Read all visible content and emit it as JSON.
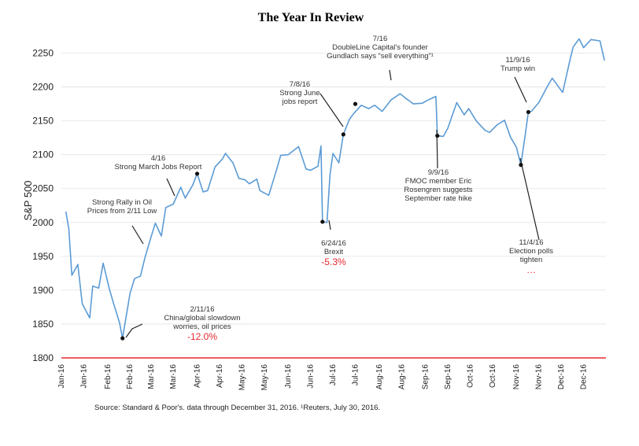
{
  "chart_data": {
    "type": "line",
    "title": "The Year In Review",
    "ylabel": "S&P 500",
    "xlabel": "",
    "ylim": [
      1800,
      2275
    ],
    "yticks": [
      1800,
      1850,
      1900,
      1950,
      2000,
      2050,
      2100,
      2150,
      2200,
      2250
    ],
    "xlim": [
      "2016-01-01",
      "2016-12-31"
    ],
    "grid": "horizontal",
    "x_tick_labels": [
      "Jan-16",
      "Jan-16",
      "Feb-16",
      "Feb-16",
      "Mar-16",
      "Mar-16",
      "Apr-16",
      "Apr-16",
      "May-16",
      "May-16",
      "Jun-16",
      "Jun-16",
      "Jul-16",
      "Jul-16",
      "Aug-16",
      "Aug-16",
      "Sep-16",
      "Sep-16",
      "Oct-16",
      "Oct-16",
      "Nov-16",
      "Nov-16",
      "Dec-16",
      "Dec-16"
    ],
    "x_tick_dates": [
      "2016-01-01",
      "2016-01-16",
      "2016-02-01",
      "2016-02-16",
      "2016-03-01",
      "2016-03-16",
      "2016-04-01",
      "2016-04-16",
      "2016-05-01",
      "2016-05-16",
      "2016-06-01",
      "2016-06-16",
      "2016-07-01",
      "2016-07-16",
      "2016-08-01",
      "2016-08-16",
      "2016-09-01",
      "2016-09-16",
      "2016-10-01",
      "2016-10-16",
      "2016-11-01",
      "2016-11-16",
      "2016-12-01",
      "2016-12-16"
    ],
    "series": [
      {
        "color": "#5b9bd5",
        "x": [
          "2016-01-04",
          "2016-01-06",
          "2016-01-08",
          "2016-01-12",
          "2016-01-15",
          "2016-01-20",
          "2016-01-22",
          "2016-01-26",
          "2016-01-29",
          "2016-02-02",
          "2016-02-05",
          "2016-02-09",
          "2016-02-11",
          "2016-02-16",
          "2016-02-19",
          "2016-02-23",
          "2016-02-26",
          "2016-03-01",
          "2016-03-04",
          "2016-03-08",
          "2016-03-11",
          "2016-03-16",
          "2016-03-21",
          "2016-03-24",
          "2016-03-29",
          "2016-04-01",
          "2016-04-05",
          "2016-04-08",
          "2016-04-13",
          "2016-04-18",
          "2016-04-20",
          "2016-04-25",
          "2016-04-29",
          "2016-05-03",
          "2016-05-06",
          "2016-05-11",
          "2016-05-13",
          "2016-05-19",
          "2016-05-24",
          "2016-05-27",
          "2016-06-01",
          "2016-06-08",
          "2016-06-13",
          "2016-06-16",
          "2016-06-21",
          "2016-06-23",
          "2016-06-24",
          "2016-06-27",
          "2016-06-29",
          "2016-07-01",
          "2016-07-05",
          "2016-07-08",
          "2016-07-12",
          "2016-07-15",
          "2016-07-20",
          "2016-07-25",
          "2016-07-29",
          "2016-08-03",
          "2016-08-09",
          "2016-08-15",
          "2016-08-19",
          "2016-08-24",
          "2016-08-30",
          "2016-09-02",
          "2016-09-08",
          "2016-09-09",
          "2016-09-13",
          "2016-09-16",
          "2016-09-22",
          "2016-09-27",
          "2016-09-30",
          "2016-10-05",
          "2016-10-11",
          "2016-10-14",
          "2016-10-19",
          "2016-10-24",
          "2016-10-28",
          "2016-11-01",
          "2016-11-04",
          "2016-11-07",
          "2016-11-09",
          "2016-11-11",
          "2016-11-16",
          "2016-11-22",
          "2016-11-25",
          "2016-11-30",
          "2016-12-02",
          "2016-12-07",
          "2016-12-09",
          "2016-12-13",
          "2016-12-16",
          "2016-12-21",
          "2016-12-27",
          "2016-12-29",
          "2016-12-30"
        ],
        "y": [
          2016,
          1990,
          1922,
          1938,
          1880,
          1859,
          1906,
          1903,
          1940,
          1903,
          1880,
          1852,
          1829,
          1895,
          1917,
          1921,
          1948,
          1978,
          1999,
          1980,
          2022,
          2027,
          2052,
          2036,
          2055,
          2072,
          2045,
          2047,
          2082,
          2094,
          2102,
          2088,
          2065,
          2063,
          2057,
          2064,
          2047,
          2040,
          2076,
          2099,
          2100,
          2112,
          2079,
          2077,
          2083,
          2113,
          2001,
          2000,
          2070,
          2102,
          2088,
          2130,
          2152,
          2161,
          2173,
          2168,
          2173,
          2164,
          2181,
          2190,
          2183,
          2175,
          2176,
          2180,
          2186,
          2128,
          2127,
          2139,
          2177,
          2159,
          2168,
          2150,
          2136,
          2133,
          2144,
          2151,
          2126,
          2111,
          2085,
          2131,
          2163,
          2164,
          2177,
          2202,
          2213,
          2198,
          2192,
          2241,
          2259,
          2271,
          2258,
          2270,
          2268,
          2249,
          2239
        ]
      }
    ],
    "markers": [
      {
        "x": "2016-02-11",
        "y": 1829
      },
      {
        "x": "2016-04-01",
        "y": 2072
      },
      {
        "x": "2016-06-24",
        "y": 2001
      },
      {
        "x": "2016-07-08",
        "y": 2130
      },
      {
        "x": "2016-07-16",
        "y": 2175
      },
      {
        "x": "2016-09-09",
        "y": 2128
      },
      {
        "x": "2016-11-04",
        "y": 2085
      },
      {
        "x": "2016-11-09",
        "y": 2163
      }
    ],
    "annotations": [
      {
        "lines": [
          "2/11/16",
          "China/global slowdown",
          "worries, oil prices"
        ],
        "pct": "-12.0%"
      },
      {
        "lines": [
          "Strong Rally in Oil",
          "Prices from 2/11 Low"
        ],
        "pct": ""
      },
      {
        "lines": [
          "4/16",
          "Strong March Jobs Report"
        ],
        "pct": ""
      },
      {
        "lines": [
          "6/24/16",
          "Brexit"
        ],
        "pct": "-5.3%"
      },
      {
        "lines": [
          "7/8/16",
          "Strong June",
          "jobs report"
        ],
        "pct": ""
      },
      {
        "lines": [
          "7/16",
          "DoubleLine Capital's founder",
          "Gundlach says “sell everything”¹"
        ],
        "pct": ""
      },
      {
        "lines": [
          "9/9/16",
          "FMOC member Eric",
          "Rosengren suggests",
          "September rate hike"
        ],
        "pct": ""
      },
      {
        "lines": [
          "11/4/16",
          "Election polls",
          "tighten"
        ],
        "pct": "…"
      },
      {
        "lines": [
          "11/9/16",
          "Trump win"
        ],
        "pct": ""
      }
    ],
    "source": "Source: Standard & Poor's. data through December 31, 2016. ¹Reuters, July 30, 2016."
  }
}
